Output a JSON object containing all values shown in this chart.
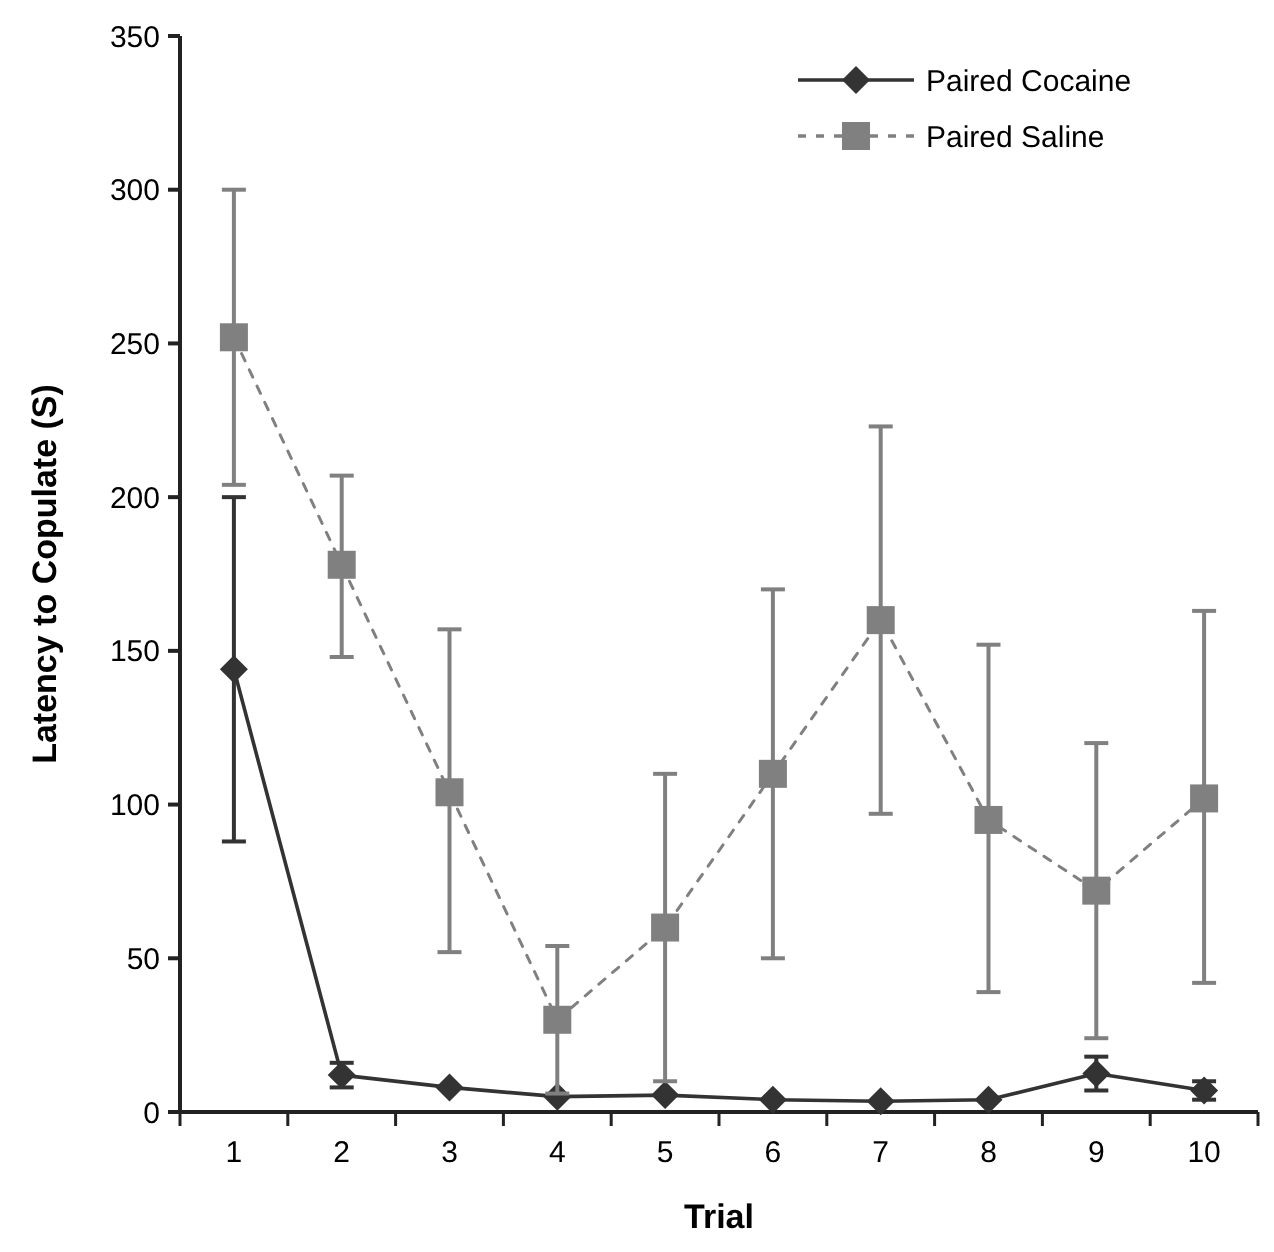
{
  "chart_data": {
    "type": "line",
    "xlabel": "Trial",
    "ylabel": "Latency to Copulate (S)",
    "categories": [
      "1",
      "2",
      "3",
      "4",
      "5",
      "6",
      "7",
      "8",
      "9",
      "10"
    ],
    "series": [
      {
        "name": "Paired Cocaine",
        "color": "#333333",
        "marker": "diamond",
        "line_style": "solid",
        "values": [
          144,
          12,
          8,
          5,
          5.5,
          4,
          3.5,
          4,
          12.5,
          7
        ],
        "errors": [
          [
            88,
            200
          ],
          [
            8,
            16
          ],
          null,
          null,
          null,
          null,
          null,
          null,
          [
            7,
            18
          ],
          [
            4,
            10
          ]
        ]
      },
      {
        "name": "Paired Saline",
        "color": "#808080",
        "marker": "square",
        "line_style": "dashed",
        "values": [
          252,
          178,
          104,
          30,
          60,
          110,
          160,
          95,
          72,
          102
        ],
        "errors": [
          [
            204,
            300
          ],
          [
            148,
            207
          ],
          [
            52,
            157
          ],
          [
            6,
            54
          ],
          [
            10,
            110
          ],
          [
            50,
            170
          ],
          [
            97,
            223
          ],
          [
            39,
            152
          ],
          [
            24,
            120
          ],
          [
            42,
            163
          ]
        ]
      }
    ],
    "ylim": [
      0,
      350
    ],
    "yticks": [
      0,
      50,
      100,
      150,
      200,
      250,
      300,
      350
    ],
    "legend": "top right"
  }
}
